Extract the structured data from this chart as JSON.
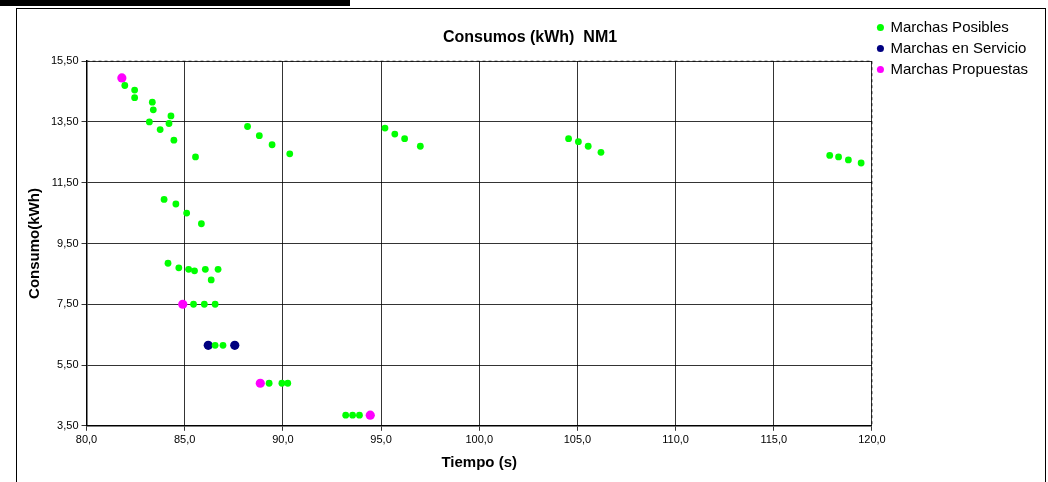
{
  "chart_data": {
    "type": "scatter",
    "title": "Consumos (kWh)  NM1",
    "xlabel": "Tiempo (s)",
    "ylabel": "Consumo(kWh)",
    "xlim": [
      80,
      120
    ],
    "xticks": [
      {
        "value": 80,
        "label": "80,0"
      },
      {
        "value": 85,
        "label": "85,0"
      },
      {
        "value": 90,
        "label": "90,0"
      },
      {
        "value": 95,
        "label": "95,0"
      },
      {
        "value": 100,
        "label": "100,0"
      },
      {
        "value": 105,
        "label": "105,0"
      },
      {
        "value": 110,
        "label": "110,0"
      },
      {
        "value": 115,
        "label": "115,0"
      },
      {
        "value": 120,
        "label": "120,0"
      }
    ],
    "ylim": [
      3.5,
      15.5
    ],
    "yticks": [
      {
        "value": 3.5,
        "label": "3,50"
      },
      {
        "value": 5.5,
        "label": "5,50"
      },
      {
        "value": 7.5,
        "label": "7,50"
      },
      {
        "value": 9.5,
        "label": "9,50"
      },
      {
        "value": 11.5,
        "label": "11,50"
      },
      {
        "value": 13.5,
        "label": "13,50"
      },
      {
        "value": 15.5,
        "label": "15,50"
      }
    ],
    "grid": true,
    "legend": "top right",
    "marker": "circle",
    "series": [
      {
        "name": "Marchas Posibles",
        "color": "#00ff00",
        "x": [
          81.95,
          82.45,
          82.45,
          83.35,
          83.4,
          83.2,
          83.75,
          84.2,
          84.3,
          84.45,
          85.55,
          88.2,
          88.8,
          89.45,
          90.35,
          83.95,
          84.55,
          85.1,
          85.85,
          84.15,
          84.7,
          85.2,
          85.5,
          86.05,
          86.7,
          86.35,
          85.45,
          86.0,
          86.55,
          86.55,
          86.95,
          89.3,
          89.95,
          90.25,
          95.2,
          95.7,
          96.2,
          97.0,
          104.55,
          105.05,
          105.55,
          106.2,
          117.85,
          118.3,
          118.8,
          119.45,
          93.2,
          93.55,
          93.9
        ],
        "values": [
          14.7,
          14.55,
          14.3,
          14.15,
          13.9,
          13.5,
          13.25,
          13.45,
          13.7,
          12.9,
          12.35,
          13.35,
          13.05,
          12.75,
          12.45,
          10.95,
          10.8,
          10.5,
          10.15,
          8.85,
          8.7,
          8.65,
          8.6,
          8.65,
          8.65,
          8.3,
          7.5,
          7.5,
          7.5,
          6.15,
          6.15,
          4.9,
          4.9,
          4.9,
          13.3,
          13.1,
          12.95,
          12.7,
          12.95,
          12.85,
          12.7,
          12.5,
          12.4,
          12.35,
          12.25,
          12.15,
          3.85,
          3.85,
          3.85
        ]
      },
      {
        "name": "Marchas en Servicio",
        "color": "#000080",
        "x": [
          86.2,
          87.55
        ],
        "values": [
          6.15,
          6.15
        ]
      },
      {
        "name": "Marchas Propuestas",
        "color": "#ff00ff",
        "x": [
          81.8,
          84.9,
          88.85,
          94.45
        ],
        "values": [
          14.95,
          7.5,
          4.9,
          3.85
        ]
      }
    ]
  }
}
